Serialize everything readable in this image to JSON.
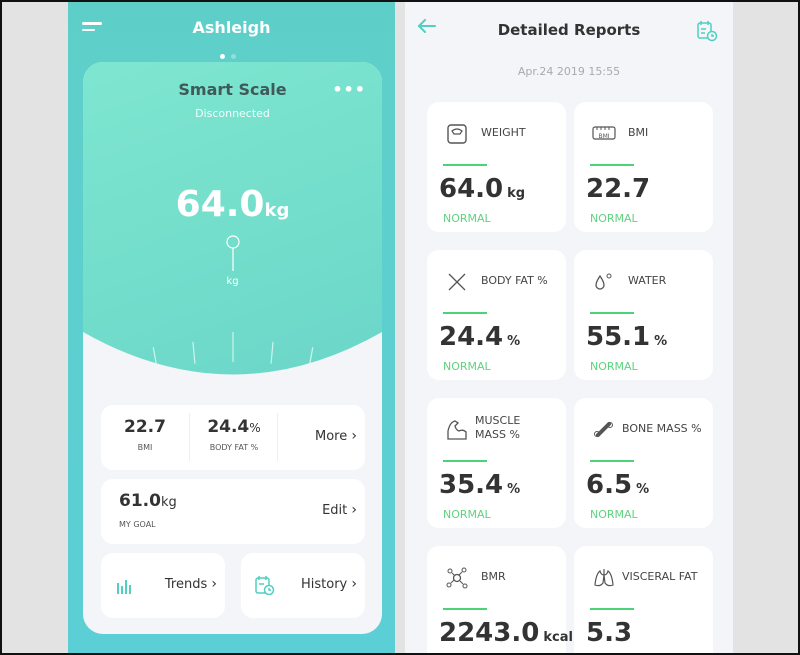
{
  "home": {
    "user": "Ashleigh",
    "device": "Smart Scale",
    "status": "Disconnected",
    "weight": "64.0",
    "weight_unit": "kg",
    "needle_unit": "kg",
    "bmi_value": "22.7",
    "bmi_label": "BMI",
    "fat_value": "24.4",
    "fat_unit": "%",
    "fat_label": "BODY FAT %",
    "more": "More",
    "goal_value": "61.0",
    "goal_unit": "kg",
    "goal_label": "MY GOAL",
    "edit": "Edit",
    "trends": "Trends",
    "history": "History"
  },
  "report": {
    "title": "Detailed Reports",
    "date": "Apr.24 2019 15:55",
    "cards": [
      {
        "label": "WEIGHT",
        "value": "64.0",
        "unit": "kg",
        "status": "NORMAL",
        "icon": "scale-icon"
      },
      {
        "label": "BMI",
        "value": "22.7",
        "unit": "",
        "status": "NORMAL",
        "icon": "bmi-icon"
      },
      {
        "label": "BODY FAT %",
        "value": "24.4",
        "unit": "%",
        "status": "NORMAL",
        "icon": "dna-icon"
      },
      {
        "label": "WATER",
        "value": "55.1",
        "unit": "%",
        "status": "NORMAL",
        "icon": "water-drop-icon"
      },
      {
        "label": "MUSCLE MASS %",
        "value": "35.4",
        "unit": "%",
        "status": "NORMAL",
        "icon": "muscle-icon"
      },
      {
        "label": "BONE MASS %",
        "value": "6.5",
        "unit": "%",
        "status": "NORMAL",
        "icon": "bone-icon"
      },
      {
        "label": "BMR",
        "value": "2243.0",
        "unit": "kcal",
        "status": "",
        "icon": "molecule-icon"
      },
      {
        "label": "VISCERAL FAT",
        "value": "5.3",
        "unit": "",
        "status": "",
        "icon": "lungs-icon"
      }
    ]
  },
  "colors": {
    "teal": "#5ecfc8",
    "accent": "#4fd0c0",
    "normal": "#5fd27f"
  }
}
